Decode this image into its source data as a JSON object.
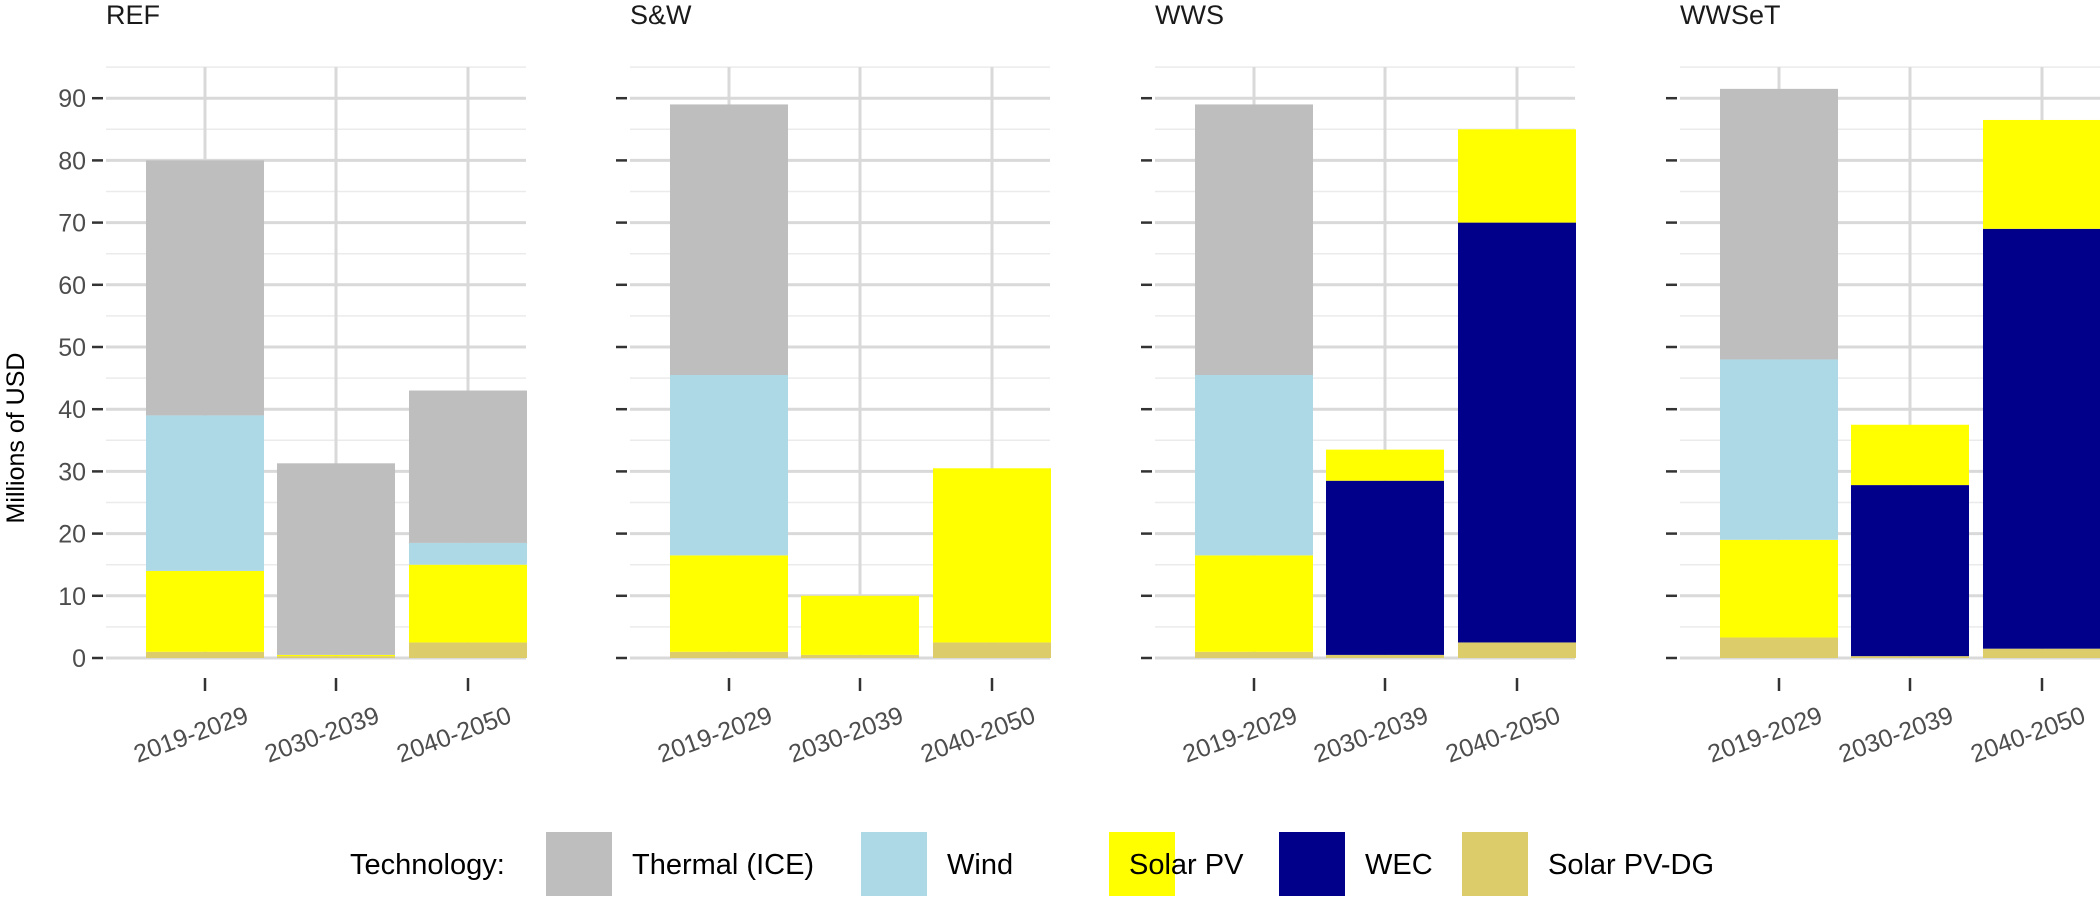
{
  "chart_data": {
    "type": "bar",
    "stacked": true,
    "ylabel": "Millions of USD",
    "ylim": [
      0,
      95
    ],
    "yticks": [
      0,
      10,
      20,
      30,
      40,
      50,
      60,
      70,
      80,
      90
    ],
    "grid": true,
    "legend_title": "Technology:",
    "legend_position": "bottom",
    "series": [
      {
        "name": "Thermal (ICE)",
        "color": "#bebebe"
      },
      {
        "name": "Wind",
        "color": "#add8e6"
      },
      {
        "name": "Solar PV",
        "color": "#ffff00"
      },
      {
        "name": "WEC",
        "color": "#00008b"
      },
      {
        "name": "Solar PV-DG",
        "color": "#ddcd6a"
      }
    ],
    "categories": [
      "2019-2029",
      "2030-2039",
      "2040-2050"
    ],
    "panels": [
      {
        "title": "REF",
        "bars": [
          {
            "Solar PV-DG": 1,
            "WEC": 0,
            "Solar PV": 13,
            "Wind": 25,
            "Thermal (ICE)": 41
          },
          {
            "Solar PV-DG": 0.3,
            "WEC": 0,
            "Solar PV": 0.2,
            "Wind": 0,
            "Thermal (ICE)": 30.8
          },
          {
            "Solar PV-DG": 2.5,
            "WEC": 0,
            "Solar PV": 12.5,
            "Wind": 3.5,
            "Thermal (ICE)": 24.5
          }
        ]
      },
      {
        "title": "S&W",
        "bars": [
          {
            "Solar PV-DG": 1,
            "WEC": 0,
            "Solar PV": 15.5,
            "Wind": 29,
            "Thermal (ICE)": 43.5
          },
          {
            "Solar PV-DG": 0.5,
            "WEC": 0,
            "Solar PV": 9.5,
            "Wind": 0,
            "Thermal (ICE)": 0
          },
          {
            "Solar PV-DG": 2.5,
            "WEC": 0,
            "Solar PV": 28,
            "Wind": 0,
            "Thermal (ICE)": 0
          }
        ]
      },
      {
        "title": "WWS",
        "bars": [
          {
            "Solar PV-DG": 1,
            "WEC": 0,
            "Solar PV": 15.5,
            "Wind": 29,
            "Thermal (ICE)": 43.5
          },
          {
            "Solar PV-DG": 0.5,
            "WEC": 28,
            "Solar PV": 5,
            "Wind": 0,
            "Thermal (ICE)": 0
          },
          {
            "Solar PV-DG": 2.5,
            "WEC": 67.5,
            "Solar PV": 15,
            "Wind": 0,
            "Thermal (ICE)": 0
          }
        ]
      },
      {
        "title": "WWSeT",
        "bars": [
          {
            "Solar PV-DG": 3.3,
            "WEC": 0,
            "Solar PV": 15.7,
            "Wind": 29,
            "Thermal (ICE)": 43.5
          },
          {
            "Solar PV-DG": 0.3,
            "WEC": 27.5,
            "Solar PV": 9.7,
            "Wind": 0,
            "Thermal (ICE)": 0
          },
          {
            "Solar PV-DG": 1.5,
            "WEC": 67.5,
            "Solar PV": 17.5,
            "Wind": 0,
            "Thermal (ICE)": 0
          }
        ]
      }
    ]
  }
}
